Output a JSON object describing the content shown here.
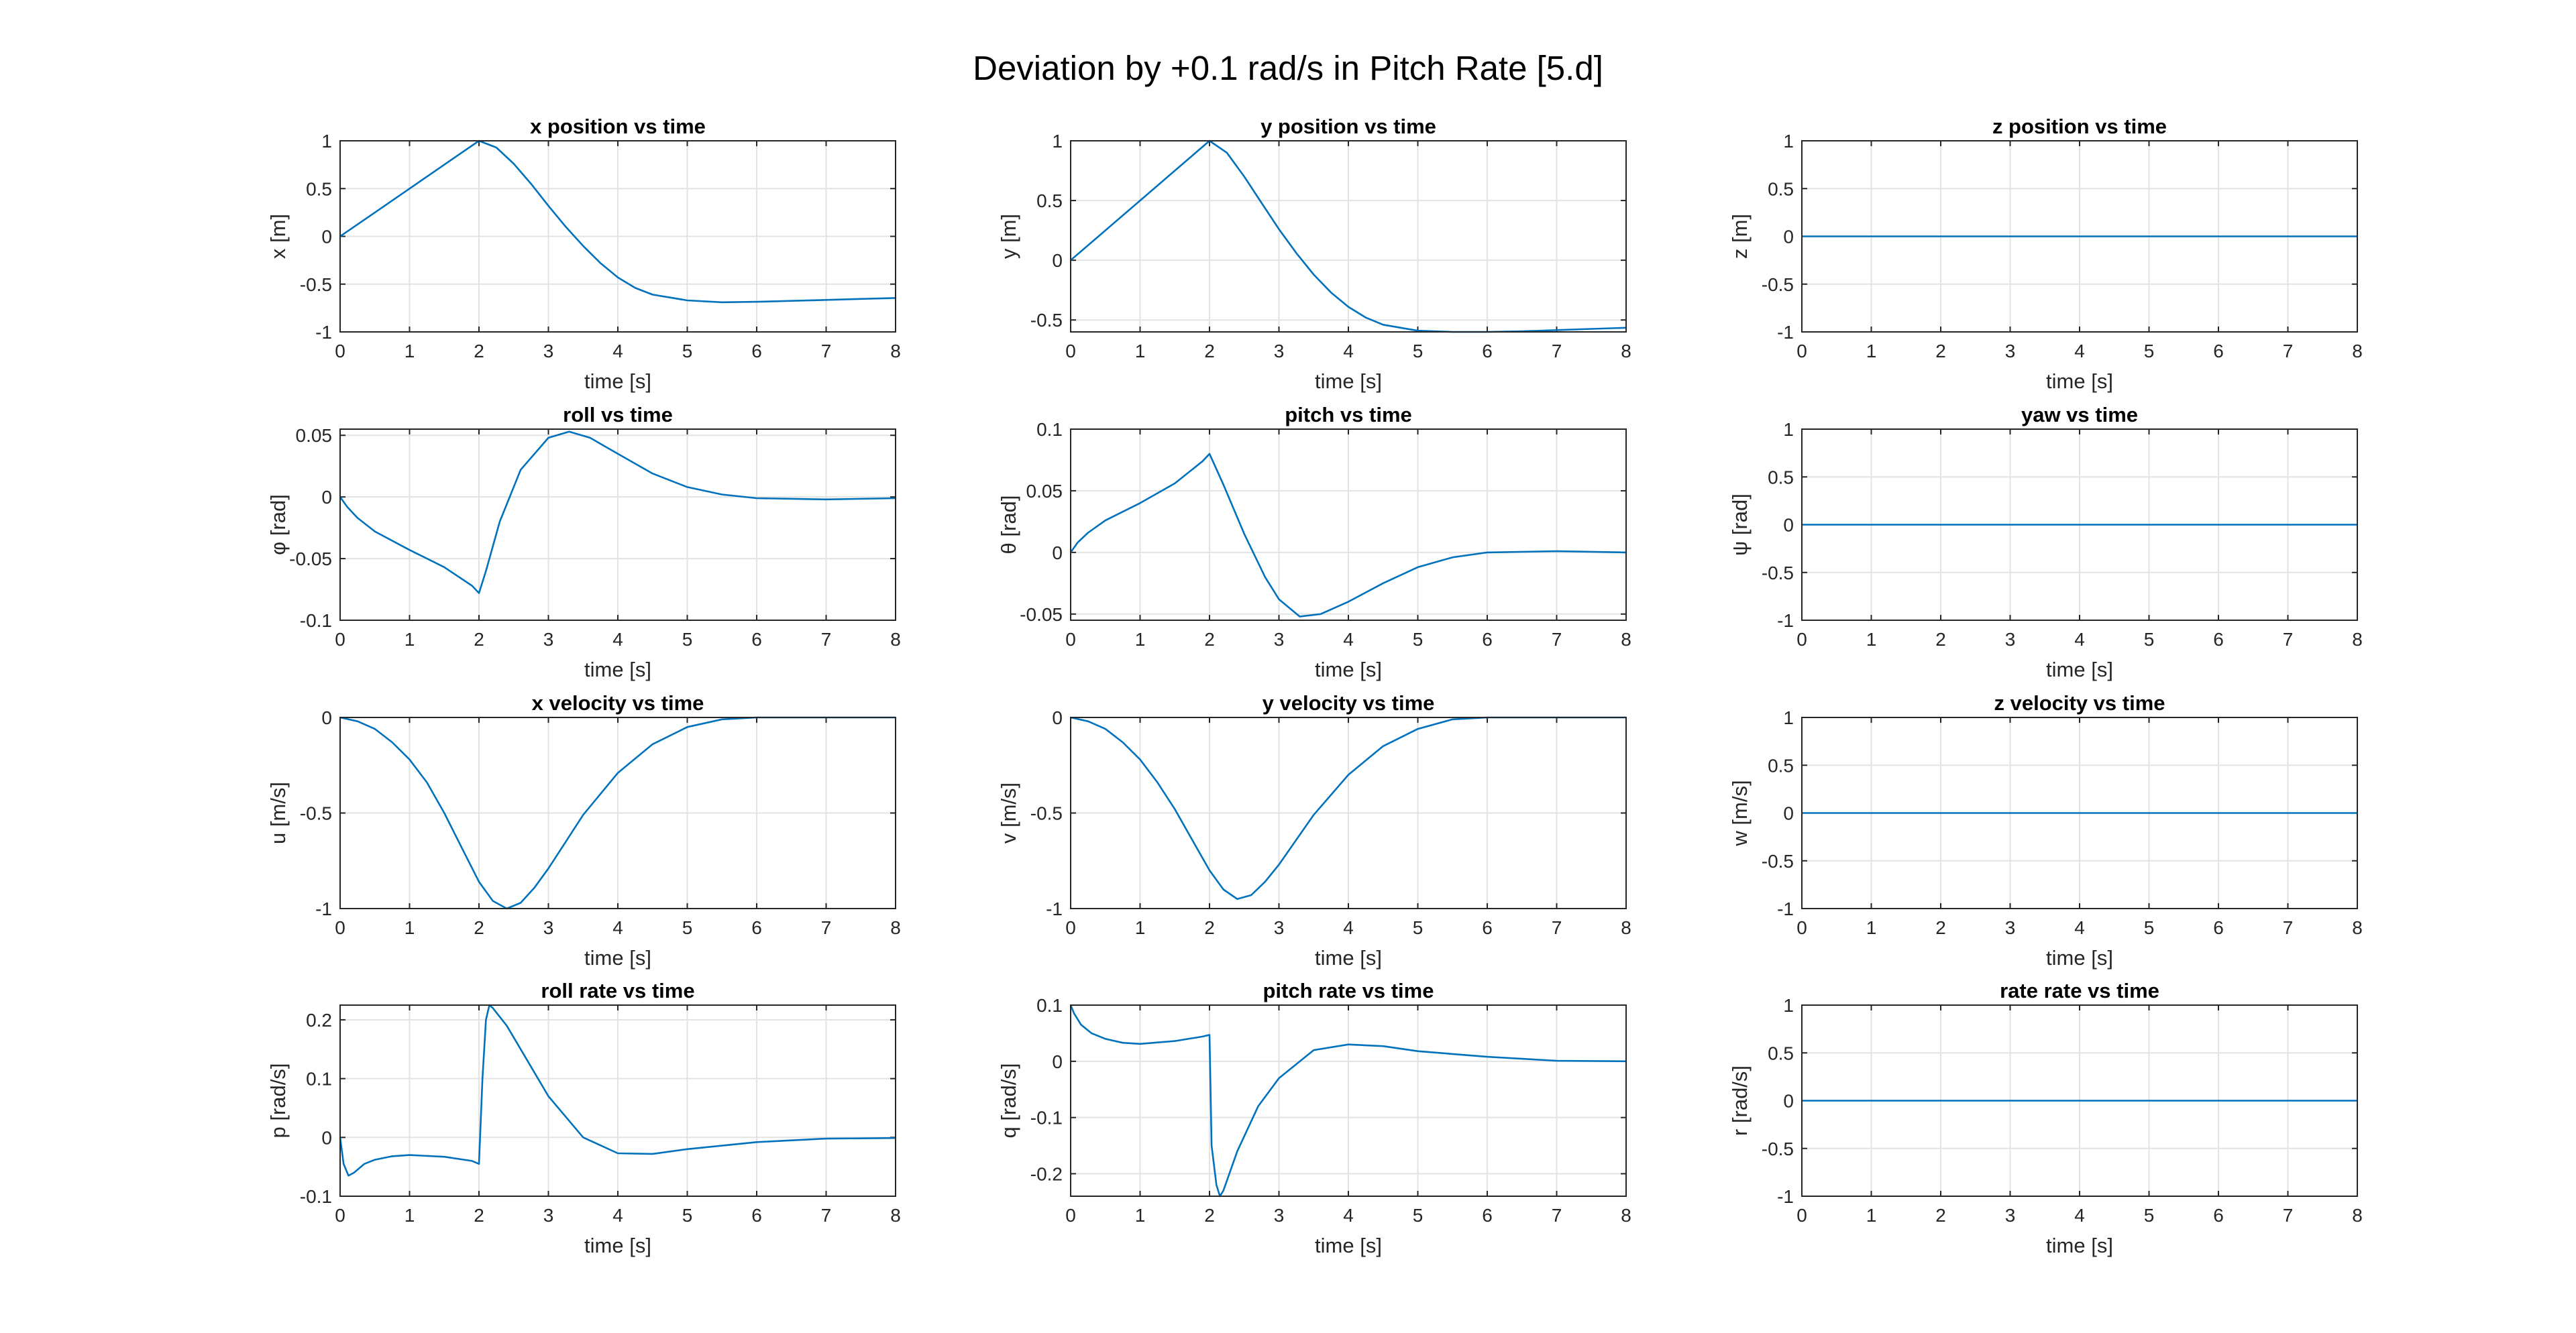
{
  "figure": {
    "title": "Deviation by +0.1 rad/s in Pitch Rate [5.d]"
  },
  "colors": {
    "line": "#0072BD",
    "grid": "#e3e3e3",
    "axes": "#262626",
    "background": "#ffffff"
  },
  "chart_data": [
    {
      "type": "line",
      "title": "x position vs time",
      "xlabel": "time [s]",
      "ylabel": "x [m]",
      "xlim": [
        0,
        8
      ],
      "ylim": [
        -1,
        1
      ],
      "xticks": [
        "0",
        "1",
        "2",
        "3",
        "4",
        "5",
        "6",
        "7",
        "8"
      ],
      "yticks": [
        "-1",
        "-0.5",
        "0",
        "0.5",
        "1"
      ],
      "ytick_values": [
        -1,
        -0.5,
        0,
        0.5,
        1
      ],
      "grid": true,
      "x": [
        0,
        0.5,
        1,
        1.5,
        2,
        2.25,
        2.5,
        2.75,
        3,
        3.25,
        3.5,
        3.75,
        4,
        4.25,
        4.5,
        5,
        5.5,
        6,
        6.5,
        7,
        7.5,
        8
      ],
      "y": [
        0,
        0.25,
        0.5,
        0.75,
        1.0,
        0.93,
        0.76,
        0.55,
        0.32,
        0.1,
        -0.1,
        -0.28,
        -0.43,
        -0.54,
        -0.61,
        -0.67,
        -0.69,
        -0.685,
        -0.675,
        -0.665,
        -0.655,
        -0.645
      ]
    },
    {
      "type": "line",
      "title": "y position vs time",
      "xlabel": "time [s]",
      "ylabel": "y [m]",
      "xlim": [
        0,
        8
      ],
      "ylim": [
        -0.6,
        1
      ],
      "xticks": [
        "0",
        "1",
        "2",
        "3",
        "4",
        "5",
        "6",
        "7",
        "8"
      ],
      "yticks": [
        "-0.5",
        "0",
        "0.5",
        "1"
      ],
      "ytick_values": [
        -0.5,
        0,
        0.5,
        1
      ],
      "grid": true,
      "x": [
        0,
        0.5,
        1,
        1.5,
        2,
        2.25,
        2.5,
        2.75,
        3,
        3.25,
        3.5,
        3.75,
        4,
        4.25,
        4.5,
        5,
        5.5,
        6,
        6.5,
        7,
        7.5,
        8
      ],
      "y": [
        0,
        0.25,
        0.5,
        0.75,
        1.0,
        0.9,
        0.7,
        0.48,
        0.26,
        0.06,
        -0.12,
        -0.27,
        -0.39,
        -0.48,
        -0.54,
        -0.59,
        -0.6,
        -0.6,
        -0.595,
        -0.585,
        -0.575,
        -0.565
      ]
    },
    {
      "type": "line",
      "title": "z position vs time",
      "xlabel": "time [s]",
      "ylabel": "z [m]",
      "xlim": [
        0,
        8
      ],
      "ylim": [
        -1,
        1
      ],
      "xticks": [
        "0",
        "1",
        "2",
        "3",
        "4",
        "5",
        "6",
        "7",
        "8"
      ],
      "yticks": [
        "-1",
        "-0.5",
        "0",
        "0.5",
        "1"
      ],
      "ytick_values": [
        -1,
        -0.5,
        0,
        0.5,
        1
      ],
      "grid": true,
      "x": [
        0,
        8
      ],
      "y": [
        0,
        0
      ]
    },
    {
      "type": "line",
      "title": "roll vs time",
      "xlabel": "time [s]",
      "ylabel": "φ [rad]",
      "xlim": [
        0,
        8
      ],
      "ylim": [
        -0.1,
        0.055
      ],
      "xticks": [
        "0",
        "1",
        "2",
        "3",
        "4",
        "5",
        "6",
        "7",
        "8"
      ],
      "yticks": [
        "-0.1",
        "-0.05",
        "0",
        "0.05"
      ],
      "ytick_values": [
        -0.1,
        -0.05,
        0,
        0.05
      ],
      "grid": true,
      "x": [
        0,
        0.1,
        0.25,
        0.5,
        1,
        1.5,
        1.9,
        2.0,
        2.1,
        2.3,
        2.6,
        3.0,
        3.3,
        3.6,
        4,
        4.5,
        5,
        5.5,
        6,
        7,
        8
      ],
      "y": [
        0,
        -0.008,
        -0.017,
        -0.028,
        -0.043,
        -0.057,
        -0.072,
        -0.078,
        -0.06,
        -0.02,
        0.022,
        0.048,
        0.053,
        0.048,
        0.035,
        0.019,
        0.008,
        0.002,
        -0.001,
        -0.002,
        -0.001
      ]
    },
    {
      "type": "line",
      "title": "pitch vs time",
      "xlabel": "time [s]",
      "ylabel": "θ [rad]",
      "xlim": [
        0,
        8
      ],
      "ylim": [
        -0.055,
        0.1
      ],
      "xticks": [
        "0",
        "1",
        "2",
        "3",
        "4",
        "5",
        "6",
        "7",
        "8"
      ],
      "yticks": [
        "-0.05",
        "0",
        "0.05",
        "0.1"
      ],
      "ytick_values": [
        -0.05,
        0,
        0.05,
        0.1
      ],
      "grid": true,
      "x": [
        0,
        0.1,
        0.25,
        0.5,
        1,
        1.5,
        1.9,
        2.0,
        2.2,
        2.5,
        2.8,
        3.0,
        3.3,
        3.6,
        4,
        4.5,
        5,
        5.5,
        6,
        7,
        8
      ],
      "y": [
        0,
        0.008,
        0.016,
        0.026,
        0.04,
        0.056,
        0.074,
        0.08,
        0.055,
        0.015,
        -0.02,
        -0.038,
        -0.052,
        -0.05,
        -0.04,
        -0.025,
        -0.012,
        -0.004,
        0.0,
        0.001,
        0.0
      ]
    },
    {
      "type": "line",
      "title": "yaw vs time",
      "xlabel": "time [s]",
      "ylabel": "ψ [rad]",
      "xlim": [
        0,
        8
      ],
      "ylim": [
        -1,
        1
      ],
      "xticks": [
        "0",
        "1",
        "2",
        "3",
        "4",
        "5",
        "6",
        "7",
        "8"
      ],
      "yticks": [
        "-1",
        "-0.5",
        "0",
        "0.5",
        "1"
      ],
      "ytick_values": [
        -1,
        -0.5,
        0,
        0.5,
        1
      ],
      "grid": true,
      "x": [
        0,
        8
      ],
      "y": [
        0,
        0
      ]
    },
    {
      "type": "line",
      "title": "x velocity vs time",
      "xlabel": "time [s]",
      "ylabel": "u [m/s]",
      "xlim": [
        0,
        8
      ],
      "ylim": [
        -1,
        0
      ],
      "xticks": [
        "0",
        "1",
        "2",
        "3",
        "4",
        "5",
        "6",
        "7",
        "8"
      ],
      "yticks": [
        "-1",
        "-0.5",
        "0"
      ],
      "ytick_values": [
        -1,
        -0.5,
        0
      ],
      "grid": true,
      "x": [
        0,
        0.25,
        0.5,
        0.75,
        1,
        1.25,
        1.5,
        1.75,
        2,
        2.2,
        2.4,
        2.6,
        2.8,
        3,
        3.25,
        3.5,
        4,
        4.5,
        5,
        5.5,
        6,
        6.5,
        7,
        8
      ],
      "y": [
        0,
        -0.02,
        -0.06,
        -0.13,
        -0.22,
        -0.34,
        -0.5,
        -0.68,
        -0.86,
        -0.96,
        -1.0,
        -0.97,
        -0.89,
        -0.79,
        -0.65,
        -0.51,
        -0.29,
        -0.14,
        -0.05,
        -0.01,
        0.01,
        0.01,
        0.01,
        0.0
      ]
    },
    {
      "type": "line",
      "title": "y velocity vs time",
      "xlabel": "time [s]",
      "ylabel": "v [m/s]",
      "xlim": [
        0,
        8
      ],
      "ylim": [
        -1,
        0
      ],
      "xticks": [
        "0",
        "1",
        "2",
        "3",
        "4",
        "5",
        "6",
        "7",
        "8"
      ],
      "yticks": [
        "-1",
        "-0.5",
        "0"
      ],
      "ytick_values": [
        -1,
        -0.5,
        0
      ],
      "grid": true,
      "x": [
        0,
        0.25,
        0.5,
        0.75,
        1,
        1.25,
        1.5,
        1.75,
        2,
        2.2,
        2.4,
        2.6,
        2.8,
        3,
        3.25,
        3.5,
        4,
        4.5,
        5,
        5.5,
        6,
        6.5,
        7,
        8
      ],
      "y": [
        0,
        -0.02,
        -0.06,
        -0.13,
        -0.22,
        -0.34,
        -0.48,
        -0.64,
        -0.8,
        -0.9,
        -0.95,
        -0.93,
        -0.86,
        -0.77,
        -0.64,
        -0.51,
        -0.3,
        -0.15,
        -0.06,
        -0.01,
        0.01,
        0.01,
        0.01,
        0.0
      ]
    },
    {
      "type": "line",
      "title": "z velocity vs time",
      "xlabel": "time [s]",
      "ylabel": "w [m/s]",
      "xlim": [
        0,
        8
      ],
      "ylim": [
        -1,
        1
      ],
      "xticks": [
        "0",
        "1",
        "2",
        "3",
        "4",
        "5",
        "6",
        "7",
        "8"
      ],
      "yticks": [
        "-1",
        "-0.5",
        "0",
        "0.5",
        "1"
      ],
      "ytick_values": [
        -1,
        -0.5,
        0,
        0.5,
        1
      ],
      "grid": true,
      "x": [
        0,
        8
      ],
      "y": [
        0,
        0
      ]
    },
    {
      "type": "line",
      "title": "roll rate vs time",
      "xlabel": "time [s]",
      "ylabel": "p [rad/s]",
      "xlim": [
        0,
        8
      ],
      "ylim": [
        -0.1,
        0.225
      ],
      "xticks": [
        "0",
        "1",
        "2",
        "3",
        "4",
        "5",
        "6",
        "7",
        "8"
      ],
      "yticks": [
        "-0.1",
        "0",
        "0.1",
        "0.2"
      ],
      "ytick_values": [
        -0.1,
        0,
        0.1,
        0.2
      ],
      "grid": true,
      "x": [
        0,
        0.05,
        0.12,
        0.2,
        0.35,
        0.5,
        0.75,
        1,
        1.5,
        1.9,
        2.0,
        2.05,
        2.1,
        2.15,
        2.2,
        2.4,
        2.7,
        3,
        3.5,
        4,
        4.5,
        5,
        6,
        7,
        8
      ],
      "y": [
        0,
        -0.045,
        -0.065,
        -0.06,
        -0.045,
        -0.038,
        -0.032,
        -0.03,
        -0.033,
        -0.04,
        -0.045,
        0.1,
        0.2,
        0.225,
        0.22,
        0.19,
        0.13,
        0.07,
        0.0,
        -0.027,
        -0.028,
        -0.02,
        -0.008,
        -0.002,
        -0.001
      ]
    },
    {
      "type": "line",
      "title": "pitch rate vs time",
      "xlabel": "time [s]",
      "ylabel": "q [rad/s]",
      "xlim": [
        0,
        8
      ],
      "ylim": [
        -0.24,
        0.1
      ],
      "xticks": [
        "0",
        "1",
        "2",
        "3",
        "4",
        "5",
        "6",
        "7",
        "8"
      ],
      "yticks": [
        "-0.2",
        "-0.1",
        "0",
        "0.1"
      ],
      "ytick_values": [
        -0.2,
        -0.1,
        0,
        0.1
      ],
      "grid": true,
      "x": [
        0,
        0.05,
        0.15,
        0.3,
        0.5,
        0.75,
        1,
        1.5,
        1.9,
        2.0,
        2.03,
        2.1,
        2.15,
        2.2,
        2.4,
        2.7,
        3,
        3.5,
        4,
        4.5,
        5,
        6,
        7,
        8
      ],
      "y": [
        0.1,
        0.085,
        0.065,
        0.05,
        0.04,
        0.033,
        0.031,
        0.036,
        0.044,
        0.047,
        -0.15,
        -0.22,
        -0.24,
        -0.23,
        -0.16,
        -0.08,
        -0.03,
        0.02,
        0.03,
        0.027,
        0.018,
        0.008,
        0.001,
        0.0
      ]
    },
    {
      "type": "line",
      "title": "rate rate vs time",
      "xlabel": "time [s]",
      "ylabel": "r [rad/s]",
      "xlim": [
        0,
        8
      ],
      "ylim": [
        -1,
        1
      ],
      "xticks": [
        "0",
        "1",
        "2",
        "3",
        "4",
        "5",
        "6",
        "7",
        "8"
      ],
      "yticks": [
        "-1",
        "-0.5",
        "0",
        "0.5",
        "1"
      ],
      "ytick_values": [
        -1,
        -0.5,
        0,
        0.5,
        1
      ],
      "grid": true,
      "x": [
        0,
        8
      ],
      "y": [
        0,
        0
      ]
    }
  ]
}
